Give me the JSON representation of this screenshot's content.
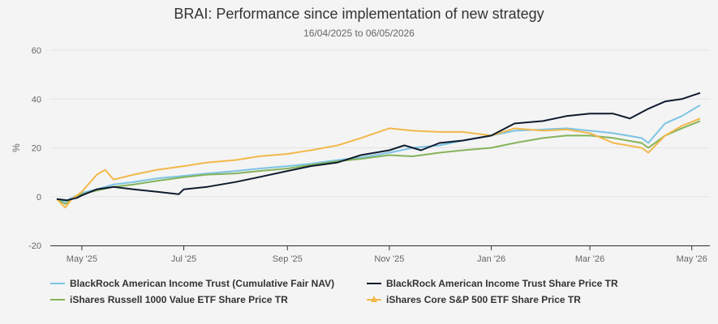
{
  "chart_data": {
    "type": "line",
    "title": "BRAI: Performance since implementation of new strategy",
    "subtitle": "16/04/2025 to 06/05/2026",
    "ylabel": "%",
    "xlabel": "",
    "ylim": [
      -20,
      60
    ],
    "yticks": [
      "-20",
      "0",
      "20",
      "40",
      "60"
    ],
    "xticks": [
      "May '25",
      "Jul '25",
      "Sep '25",
      "Nov '25",
      "Jan '26",
      "Mar '26",
      "May '26"
    ],
    "xtick_dates": [
      "2025-05-01",
      "2025-07-01",
      "2025-09-01",
      "2025-11-01",
      "2026-01-01",
      "2026-03-01",
      "2026-05-01"
    ],
    "xlim": [
      "2025-04-16",
      "2026-05-06"
    ],
    "grid": true,
    "legend_position": "bottom",
    "series": [
      {
        "name": "BlackRock American Income Trust (Cumulative Fair NAV)",
        "color": "#7cc4e4",
        "marker": "none",
        "points": [
          [
            "2025-04-16",
            -1
          ],
          [
            "2025-04-21",
            -2
          ],
          [
            "2025-04-25",
            -0.5
          ],
          [
            "2025-05-01",
            1.5
          ],
          [
            "2025-05-10",
            3
          ],
          [
            "2025-05-20",
            5
          ],
          [
            "2025-06-01",
            6
          ],
          [
            "2025-06-15",
            7.5
          ],
          [
            "2025-07-01",
            8.5
          ],
          [
            "2025-07-15",
            9.5
          ],
          [
            "2025-08-01",
            10.5
          ],
          [
            "2025-08-15",
            11.5
          ],
          [
            "2025-09-01",
            12.5
          ],
          [
            "2025-09-15",
            13.5
          ],
          [
            "2025-10-01",
            15
          ],
          [
            "2025-10-15",
            16
          ],
          [
            "2025-11-01",
            18
          ],
          [
            "2025-11-15",
            20
          ],
          [
            "2025-12-01",
            21
          ],
          [
            "2025-12-15",
            23
          ],
          [
            "2026-01-01",
            25
          ],
          [
            "2026-01-15",
            27
          ],
          [
            "2026-02-01",
            27.5
          ],
          [
            "2026-02-15",
            28
          ],
          [
            "2026-03-01",
            27
          ],
          [
            "2026-03-15",
            26
          ],
          [
            "2026-04-01",
            24
          ],
          [
            "2026-04-05",
            22
          ],
          [
            "2026-04-15",
            30
          ],
          [
            "2026-04-25",
            33
          ],
          [
            "2026-05-06",
            37.5
          ]
        ]
      },
      {
        "name": "BlackRock American Income Trust Share Price TR",
        "color": "#0f1b2d",
        "marker": "none",
        "points": [
          [
            "2025-04-16",
            -1
          ],
          [
            "2025-04-22",
            -1.5
          ],
          [
            "2025-04-28",
            -0.5
          ],
          [
            "2025-05-01",
            0.5
          ],
          [
            "2025-05-10",
            3
          ],
          [
            "2025-05-20",
            4
          ],
          [
            "2025-06-01",
            3
          ],
          [
            "2025-06-15",
            2
          ],
          [
            "2025-06-28",
            1
          ],
          [
            "2025-07-01",
            3
          ],
          [
            "2025-07-15",
            4
          ],
          [
            "2025-08-01",
            6
          ],
          [
            "2025-08-15",
            8
          ],
          [
            "2025-09-01",
            10.5
          ],
          [
            "2025-09-15",
            12.5
          ],
          [
            "2025-10-01",
            14
          ],
          [
            "2025-10-15",
            17
          ],
          [
            "2025-11-01",
            19
          ],
          [
            "2025-11-10",
            21
          ],
          [
            "2025-11-20",
            19
          ],
          [
            "2025-12-01",
            22
          ],
          [
            "2025-12-15",
            23
          ],
          [
            "2026-01-01",
            25
          ],
          [
            "2026-01-15",
            30
          ],
          [
            "2026-02-01",
            31
          ],
          [
            "2026-02-15",
            33
          ],
          [
            "2026-03-01",
            34
          ],
          [
            "2026-03-15",
            34
          ],
          [
            "2026-03-25",
            32
          ],
          [
            "2026-04-05",
            36
          ],
          [
            "2026-04-15",
            39
          ],
          [
            "2026-04-25",
            40
          ],
          [
            "2026-05-06",
            42.5
          ]
        ]
      },
      {
        "name": "iShares Russell 1000 Value ETF Share Price TR",
        "color": "#85b35a",
        "marker": "none",
        "points": [
          [
            "2025-04-16",
            -1
          ],
          [
            "2025-04-21",
            -3
          ],
          [
            "2025-04-25",
            -1
          ],
          [
            "2025-05-01",
            1
          ],
          [
            "2025-05-10",
            2.5
          ],
          [
            "2025-05-20",
            4
          ],
          [
            "2025-06-01",
            5
          ],
          [
            "2025-06-15",
            6.5
          ],
          [
            "2025-07-01",
            8
          ],
          [
            "2025-07-15",
            9
          ],
          [
            "2025-08-01",
            9.5
          ],
          [
            "2025-08-15",
            10.5
          ],
          [
            "2025-09-01",
            11.5
          ],
          [
            "2025-09-15",
            13
          ],
          [
            "2025-10-01",
            14.5
          ],
          [
            "2025-10-15",
            15.5
          ],
          [
            "2025-11-01",
            17
          ],
          [
            "2025-11-15",
            16.5
          ],
          [
            "2025-12-01",
            18
          ],
          [
            "2025-12-15",
            19
          ],
          [
            "2026-01-01",
            20
          ],
          [
            "2026-01-15",
            22
          ],
          [
            "2026-02-01",
            24
          ],
          [
            "2026-02-15",
            25
          ],
          [
            "2026-03-01",
            25
          ],
          [
            "2026-03-15",
            24
          ],
          [
            "2026-04-01",
            22
          ],
          [
            "2026-04-05",
            20
          ],
          [
            "2026-04-15",
            25
          ],
          [
            "2026-04-25",
            28
          ],
          [
            "2026-05-06",
            31
          ]
        ]
      },
      {
        "name": "iShares Core S&P 500 ETF Share Price TR",
        "color": "#f2b84b",
        "marker": "triangle",
        "points": [
          [
            "2025-04-16",
            -1
          ],
          [
            "2025-04-21",
            -4.5
          ],
          [
            "2025-04-25",
            -1
          ],
          [
            "2025-05-01",
            2
          ],
          [
            "2025-05-10",
            9
          ],
          [
            "2025-05-15",
            11
          ],
          [
            "2025-05-20",
            7
          ],
          [
            "2025-06-01",
            9
          ],
          [
            "2025-06-15",
            11
          ],
          [
            "2025-07-01",
            12.5
          ],
          [
            "2025-07-15",
            14
          ],
          [
            "2025-08-01",
            15
          ],
          [
            "2025-08-15",
            16.5
          ],
          [
            "2025-09-01",
            17.5
          ],
          [
            "2025-09-15",
            19
          ],
          [
            "2025-10-01",
            21
          ],
          [
            "2025-10-15",
            24
          ],
          [
            "2025-11-01",
            28
          ],
          [
            "2025-11-15",
            27
          ],
          [
            "2025-12-01",
            26.5
          ],
          [
            "2025-12-15",
            26.5
          ],
          [
            "2026-01-01",
            25
          ],
          [
            "2026-01-15",
            28
          ],
          [
            "2026-02-01",
            27
          ],
          [
            "2026-02-15",
            27.5
          ],
          [
            "2026-03-01",
            26
          ],
          [
            "2026-03-15",
            22
          ],
          [
            "2026-04-01",
            20
          ],
          [
            "2026-04-05",
            18
          ],
          [
            "2026-04-15",
            25
          ],
          [
            "2026-04-25",
            29
          ],
          [
            "2026-05-06",
            32
          ]
        ]
      }
    ]
  }
}
